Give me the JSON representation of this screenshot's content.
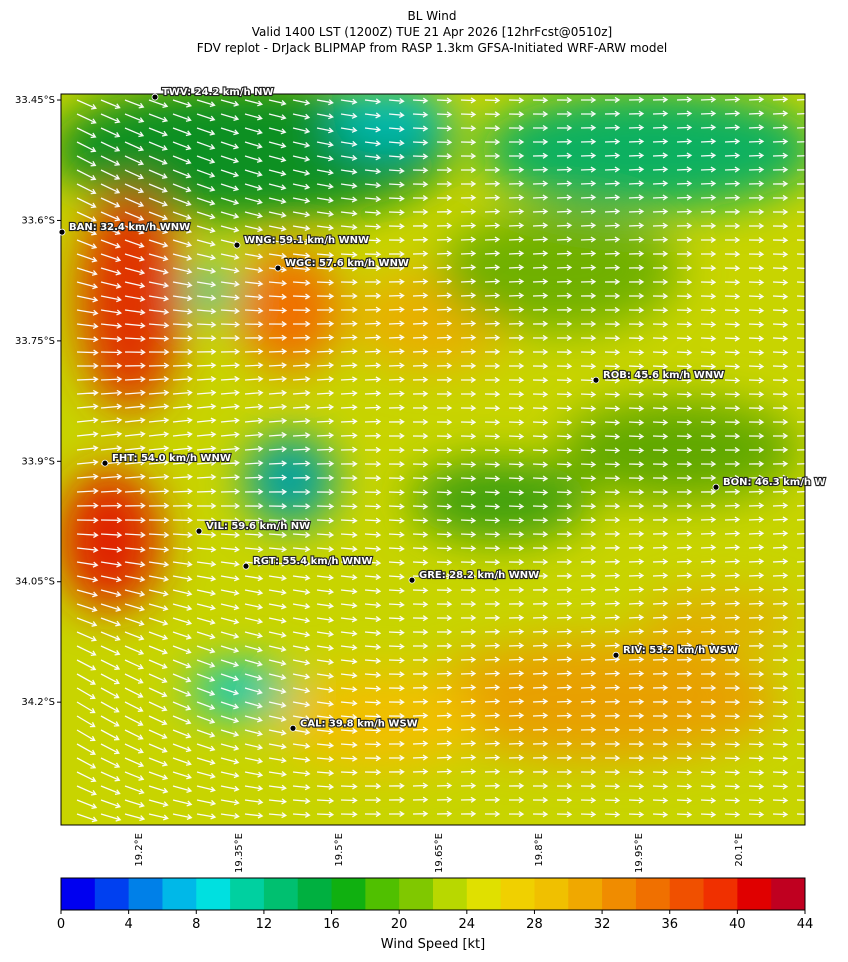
{
  "title": [
    "BL Wind",
    "Valid 1400 LST (1200Z) TUE 21 Apr 2026 [12hrFcst@0510z]",
    "FDV replot - DrJack BLIPMAP from RASP 1.3km GFSA-Initiated WRF-ARW model"
  ],
  "map": {
    "xlim": [
      19.0845,
      20.2005
    ],
    "ylim": [
      -34.353,
      -33.4425
    ],
    "xticks": [
      {
        "value": 19.2,
        "label": "19.2°E"
      },
      {
        "value": 19.35,
        "label": "19.35°E"
      },
      {
        "value": 19.5,
        "label": "19.5°E"
      },
      {
        "value": 19.65,
        "label": "19.65°E"
      },
      {
        "value": 19.8,
        "label": "19.8°E"
      },
      {
        "value": 19.95,
        "label": "19.95°E"
      },
      {
        "value": 20.1,
        "label": "20.1°E"
      }
    ],
    "yticks": [
      {
        "value": -33.45,
        "label": "33.45°S"
      },
      {
        "value": -33.6,
        "label": "33.6°S"
      },
      {
        "value": -33.75,
        "label": "33.75°S"
      },
      {
        "value": -33.9,
        "label": "33.9°S"
      },
      {
        "value": -34.05,
        "label": "34.05°S"
      },
      {
        "value": -34.2,
        "label": "34.2°S"
      }
    ],
    "stations": [
      {
        "label": "TWV: 24.2 km/h NW",
        "lon": 19.2255,
        "lat": -33.4463
      },
      {
        "label": "BAN: 32.4 km/h WNW",
        "lon": 19.086,
        "lat": -33.6145
      },
      {
        "label": "WNG: 59.1 km/h WNW",
        "lon": 19.3485,
        "lat": -33.6307
      },
      {
        "label": "WGC: 57.6 km/h WNW",
        "lon": 19.41,
        "lat": -33.6593
      },
      {
        "label": "ROB: 45.6 km/h WNW",
        "lon": 19.887,
        "lat": -33.7989
      },
      {
        "label": "FHT: 54.0 km/h WNW",
        "lon": 19.1505,
        "lat": -33.9023
      },
      {
        "label": "BON: 46.3 km/h W",
        "lon": 20.067,
        "lat": -33.9322
      },
      {
        "label": "VIL: 59.6 km/h NW",
        "lon": 19.2915,
        "lat": -33.987
      },
      {
        "label": "RGT: 55.4 km/h WNW",
        "lon": 19.362,
        "lat": -34.0306
      },
      {
        "label": "GRE: 28.2 km/h WNW",
        "lon": 19.611,
        "lat": -34.048
      },
      {
        "label": "RIV: 53.2 km/h WSW",
        "lon": 19.917,
        "lat": -34.1415
      },
      {
        "label": "CAL: 39.8 km/h WSW",
        "lon": 19.4325,
        "lat": -34.2325
      }
    ]
  },
  "colorbar": {
    "label": "Wind Speed [kt]",
    "range": [
      0,
      44
    ],
    "ticks": [
      0,
      4,
      8,
      12,
      16,
      20,
      24,
      28,
      32,
      36,
      40,
      44
    ],
    "colors": [
      "#0000f0",
      "#0040f0",
      "#0080e8",
      "#00b8e8",
      "#00e0e0",
      "#00d0a0",
      "#00c070",
      "#00b040",
      "#10b010",
      "#50c000",
      "#80c800",
      "#b8d800",
      "#e0e000",
      "#f0d000",
      "#f0c000",
      "#f0a800",
      "#f08c00",
      "#f07000",
      "#f05000",
      "#f03000",
      "#e00000",
      "#c00020"
    ]
  }
}
